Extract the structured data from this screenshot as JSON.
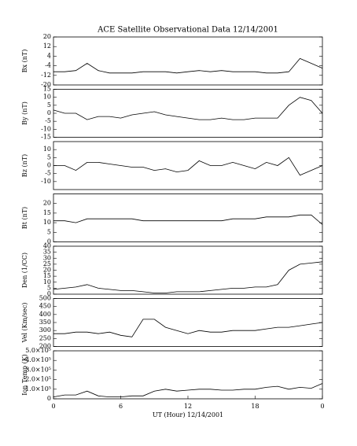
{
  "chart_data": [
    {
      "type": "line",
      "title": "ACE Satellite Observational Data   12/14/2001",
      "y_label": "Bx (nT)",
      "color": "#000000",
      "x": [
        0,
        1,
        2,
        3,
        4,
        5,
        6,
        7,
        8,
        9,
        10,
        11,
        12,
        13,
        14,
        15,
        16,
        17,
        18,
        19,
        20,
        21,
        22,
        23,
        24
      ],
      "values": [
        -9,
        -9,
        -8,
        -2,
        -8,
        -10,
        -10,
        -10,
        -9,
        -9,
        -9,
        -10,
        -9,
        -8,
        -9,
        -8,
        -9,
        -9,
        -9,
        -10,
        -10,
        -9,
        2,
        -2,
        -6
      ],
      "xlim": [
        0,
        24
      ],
      "ylim": [
        -20,
        20
      ],
      "yticks": [
        20,
        12,
        4,
        -4,
        -12,
        -20
      ]
    },
    {
      "type": "line",
      "y_label": "By (nT)",
      "color": "#000000",
      "x": [
        0,
        1,
        2,
        3,
        4,
        5,
        6,
        7,
        8,
        9,
        10,
        11,
        12,
        13,
        14,
        15,
        16,
        17,
        18,
        19,
        20,
        21,
        22,
        23,
        24
      ],
      "values": [
        2,
        0,
        0,
        -4,
        -2,
        -2,
        -3,
        -1,
        0,
        1,
        -1,
        -2,
        -3,
        -4,
        -4,
        -3,
        -4,
        -4,
        -3,
        -3,
        -3,
        5,
        10,
        8,
        0
      ],
      "xlim": [
        0,
        24
      ],
      "ylim": [
        -15,
        15
      ],
      "yticks": [
        15,
        10,
        5,
        0,
        -5,
        -10,
        -15
      ]
    },
    {
      "type": "line",
      "y_label": "Bz (nT)",
      "color": "#000000",
      "x": [
        0,
        1,
        2,
        3,
        4,
        5,
        6,
        7,
        8,
        9,
        10,
        11,
        12,
        13,
        14,
        15,
        16,
        17,
        18,
        19,
        20,
        21,
        22,
        23,
        24
      ],
      "values": [
        0,
        0,
        -3,
        2,
        2,
        1,
        0,
        -1,
        -1,
        -3,
        -2,
        -4,
        -3,
        3,
        0,
        0,
        2,
        0,
        -2,
        2,
        0,
        5,
        -6,
        -3,
        0
      ],
      "xlim": [
        0,
        24
      ],
      "ylim": [
        -15,
        15
      ],
      "yticks": [
        10,
        5,
        0,
        -5,
        -10
      ]
    },
    {
      "type": "line",
      "y_label": "Bt (nT)",
      "color": "#000000",
      "x": [
        0,
        1,
        2,
        3,
        4,
        5,
        6,
        7,
        8,
        9,
        10,
        11,
        12,
        13,
        14,
        15,
        16,
        17,
        18,
        19,
        20,
        21,
        22,
        23,
        24
      ],
      "values": [
        11,
        11,
        10,
        12,
        12,
        12,
        12,
        12,
        11,
        11,
        11,
        11,
        11,
        11,
        11,
        11,
        12,
        12,
        12,
        13,
        13,
        13,
        14,
        14,
        9
      ],
      "xlim": [
        0,
        24
      ],
      "ylim": [
        0,
        25
      ],
      "yticks": [
        20,
        15,
        10,
        5,
        0
      ]
    },
    {
      "type": "line",
      "y_label": "Den (1/CC)",
      "color": "#000000",
      "x": [
        0,
        1,
        2,
        3,
        4,
        5,
        6,
        7,
        8,
        9,
        10,
        11,
        12,
        13,
        14,
        15,
        16,
        17,
        18,
        19,
        20,
        21,
        22,
        23,
        24
      ],
      "values": [
        4,
        5,
        6,
        8,
        5,
        4,
        3,
        3,
        2,
        1,
        1,
        2,
        2,
        2,
        3,
        4,
        5,
        5,
        6,
        6,
        8,
        20,
        25,
        26,
        27
      ],
      "xlim": [
        0,
        24
      ],
      "ylim": [
        0,
        40
      ],
      "yticks": [
        40,
        35,
        30,
        25,
        20,
        15,
        10,
        5,
        0
      ]
    },
    {
      "type": "line",
      "y_label": "Vel (Km/sec)",
      "color": "#000000",
      "x": [
        0,
        1,
        2,
        3,
        4,
        5,
        6,
        7,
        8,
        9,
        10,
        11,
        12,
        13,
        14,
        15,
        16,
        17,
        18,
        19,
        20,
        21,
        22,
        23,
        24
      ],
      "values": [
        280,
        280,
        290,
        290,
        280,
        290,
        270,
        260,
        370,
        370,
        320,
        300,
        280,
        300,
        290,
        290,
        300,
        300,
        300,
        310,
        320,
        320,
        330,
        340,
        350
      ],
      "xlim": [
        0,
        24
      ],
      "ylim": [
        200,
        500
      ],
      "yticks": [
        500,
        450,
        400,
        350,
        300,
        250,
        200
      ]
    },
    {
      "type": "line",
      "y_label": "Ion Temp (K)",
      "x_label": "UT (Hour)  12/14/2001",
      "color": "#000000",
      "x": [
        0,
        1,
        2,
        3,
        4,
        5,
        6,
        7,
        8,
        9,
        10,
        11,
        12,
        13,
        14,
        15,
        16,
        17,
        18,
        19,
        20,
        21,
        22,
        23,
        24
      ],
      "values": [
        20000,
        40000,
        40000,
        80000,
        30000,
        20000,
        20000,
        30000,
        30000,
        80000,
        100000,
        80000,
        90000,
        100000,
        100000,
        90000,
        90000,
        100000,
        100000,
        120000,
        130000,
        100000,
        120000,
        110000,
        160000
      ],
      "xlim": [
        0,
        24
      ],
      "ylim": [
        0,
        500000
      ],
      "yticks": [
        {
          "value": 500000,
          "label": "5.0×10⁵"
        },
        {
          "value": 400000,
          "label": "4.0×10⁵"
        },
        {
          "value": 300000,
          "label": "3.0×10⁵"
        },
        {
          "value": 200000,
          "label": "2.0×10⁵"
        },
        {
          "value": 100000,
          "label": "1.0×10⁵"
        },
        0
      ],
      "xticks": [
        0,
        6,
        12,
        18,
        {
          "value": 24,
          "label": "0"
        }
      ]
    }
  ]
}
